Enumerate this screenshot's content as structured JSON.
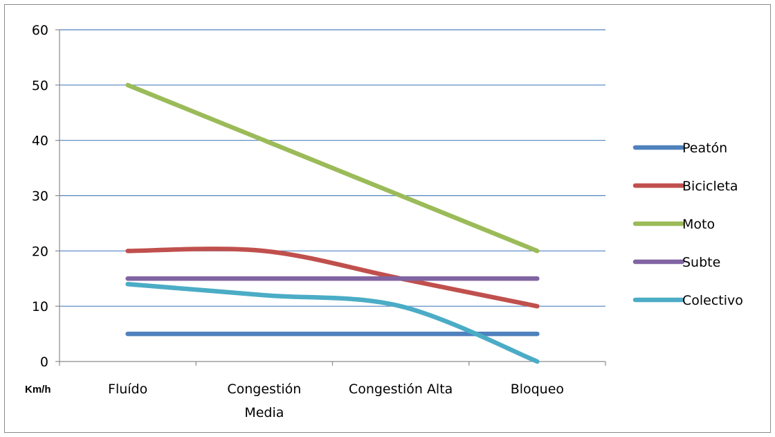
{
  "chart_data": {
    "type": "line",
    "title": "",
    "xlabel": "",
    "ylabel": "",
    "unit_label": "Km/h",
    "categories": [
      [
        "Fluído"
      ],
      [
        "Congestión",
        "Media"
      ],
      [
        "Congestión Alta"
      ],
      [
        "Bloqueo"
      ]
    ],
    "ylim": [
      0,
      60
    ],
    "yticks": [
      0,
      10,
      20,
      30,
      40,
      50,
      60
    ],
    "grid": true,
    "smooth": true,
    "legend_position": "right",
    "series": [
      {
        "name": "Peatón",
        "color": "#4f81bd",
        "values": [
          5,
          5,
          5,
          5
        ]
      },
      {
        "name": "Bicicleta",
        "color": "#c0504d",
        "values": [
          20,
          20,
          15,
          10
        ]
      },
      {
        "name": "Moto",
        "color": "#9bbb59",
        "values": [
          50,
          40,
          30,
          20
        ]
      },
      {
        "name": "Subte",
        "color": "#8064a2",
        "values": [
          15,
          15,
          15,
          15
        ]
      },
      {
        "name": "Colectivo",
        "color": "#4bacc6",
        "values": [
          14,
          12,
          10,
          0
        ]
      }
    ]
  }
}
